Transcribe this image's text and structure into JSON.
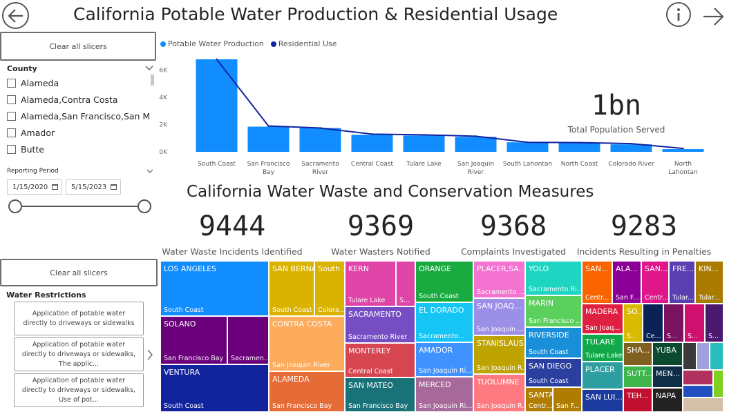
{
  "header": {
    "title": "California Potable Water Production & Residential Usage",
    "info_icon": "info-icon",
    "back_icon": "back-arrow-icon",
    "next_icon": "forward-arrow-icon"
  },
  "filters": {
    "clear_label": "Clear all slicers",
    "county": {
      "header": "County",
      "items": [
        "Alameda",
        "Alameda,Contra Costa",
        "Alameda,San Francisco,San Ma...",
        "Amador",
        "Butte"
      ]
    },
    "reporting_period": {
      "header": "Reporting Period",
      "start": "1/15/2020",
      "end": "5/15/2023"
    }
  },
  "restrictions": {
    "clear_label": "Clear all slicers",
    "header": "Water Restrictions",
    "tiles": [
      "Application of potable water directly to driveways or sidewalks",
      "Application of potable water directly to driveways or sidewalks, The applic...",
      "Application of potable water directly to driveways or sidewalks, Use of pot..."
    ]
  },
  "chart_data": {
    "type": "bar",
    "categories": [
      "South Coast",
      "San Francisco Bay",
      "Sacramento River",
      "Central Coast",
      "Tulare Lake",
      "San Joaquin River",
      "South Lahontan",
      "North Coast",
      "Colorado River",
      "North Lahontan"
    ],
    "category_lines": [
      [
        "South Coast"
      ],
      [
        "San Francisco",
        "Bay"
      ],
      [
        "Sacramento",
        "River"
      ],
      [
        "Central Coast"
      ],
      [
        "Tulare Lake"
      ],
      [
        "San Joaquin",
        "River"
      ],
      [
        "South Lahontan"
      ],
      [
        "North Coast"
      ],
      [
        "Colorado River"
      ],
      [
        "North",
        "Lahontan"
      ]
    ],
    "series": [
      {
        "name": "Potable Water Production",
        "type": "bar",
        "color": "#118DFF",
        "values": [
          6800,
          1850,
          1750,
          1250,
          1200,
          1100,
          700,
          650,
          550,
          200
        ]
      },
      {
        "name": "Residential Use",
        "type": "line",
        "color": "#12239E",
        "values": [
          6800,
          1900,
          1750,
          1300,
          1250,
          1150,
          700,
          680,
          600,
          250
        ]
      }
    ],
    "y_ticks": [
      "0K",
      "2K",
      "4K",
      "6K"
    ],
    "y_tick_values": [
      0,
      2000,
      4000,
      6000
    ],
    "ylim": [
      0,
      7200
    ],
    "legend_position": "top-left"
  },
  "population": {
    "value": "1bn",
    "label": "Total Population Served"
  },
  "conservation": {
    "title": "California Water Waste and Conservation Measures",
    "kpis": [
      {
        "value": "9444",
        "label": "Water Waste Incidents Identified"
      },
      {
        "value": "9369",
        "label": "Water Wasters Notified"
      },
      {
        "value": "9368",
        "label": "Complaints Investigated"
      },
      {
        "value": "9283",
        "label": "Incidents Resulting in Penalties"
      }
    ]
  },
  "treemap": {
    "cells": [
      {
        "name": "LOS ANGELES",
        "sub": "South Coast",
        "color": "#118DFF"
      },
      {
        "name": "SOLANO",
        "sub": "San Francisco Bay",
        "color": "#6B007B"
      },
      {
        "name": "",
        "sub": "Sacramen...",
        "color": "#6B007B"
      },
      {
        "name": "VENTURA",
        "sub": "South Coast",
        "color": "#12239E"
      },
      {
        "name": "SAN BERNARDINO",
        "sub": "South Coast",
        "color": "#D9B300"
      },
      {
        "name": "South ...",
        "sub": "Colora...",
        "color": "#D9B300"
      },
      {
        "name": "CONTRA COSTA",
        "sub": "San Joaquin River",
        "color": "#FDAB5C"
      },
      {
        "name": "ALAMEDA",
        "sub": "San Francisco Bay",
        "color": "#E66C37"
      },
      {
        "name": "KERN",
        "sub": "Tulare Lake",
        "color": "#E044A7"
      },
      {
        "name": "",
        "sub": "S...",
        "color": "#E044A7"
      },
      {
        "name": "SACRAMENTO",
        "sub": "Sacramento River",
        "color": "#744EC2"
      },
      {
        "name": "MONTEREY",
        "sub": "Central Coast",
        "color": "#D64550"
      },
      {
        "name": "SAN MATEO",
        "sub": "San Francisco Bay",
        "color": "#197278"
      },
      {
        "name": "ORANGE",
        "sub": "South Coast",
        "color": "#1AAB40"
      },
      {
        "name": "EL DORADO",
        "sub": "Sacramento...",
        "color": "#15C6F4"
      },
      {
        "name": "AMADOR",
        "sub": "San Joaquin Ri...",
        "color": "#4092FF"
      },
      {
        "name": "MERCED",
        "sub": "San Joaquin Ri...",
        "color": "#A66999"
      },
      {
        "name": "PLACER,SA...",
        "sub": "Sacramento ...",
        "color": "#F472D0"
      },
      {
        "name": "SAN JOAQ...",
        "sub": "San Joaquin ...",
        "color": "#9B8FE8"
      },
      {
        "name": "STANISLAUS",
        "sub": "San Joaquin R...",
        "color": "#BFA300"
      },
      {
        "name": "TUOLUMNE",
        "sub": "San Joaquin R...",
        "color": "#FF7A80"
      },
      {
        "name": "YOLO",
        "sub": "Sacramento Ri...",
        "color": "#1DD5C0"
      },
      {
        "name": "MARIN",
        "sub": "San Francisco ...",
        "color": "#5CD05C"
      },
      {
        "name": "RIVERSIDE",
        "sub": "South Coast",
        "color": "#1A8FD9"
      },
      {
        "name": "SAN DIEGO",
        "sub": "South Coast",
        "color": "#2B3FA0"
      },
      {
        "name": "SANTA CLARA",
        "sub": "Centr...",
        "color": "#B07C00"
      },
      {
        "name": "",
        "sub": "San F...",
        "color": "#B07C00"
      },
      {
        "name": "SAN...",
        "sub": "Centr...",
        "color": "#FA6400"
      },
      {
        "name": "ALA...",
        "sub": "San F...",
        "color": "#8A0096"
      },
      {
        "name": "SAN...",
        "sub": "Centr...",
        "color": "#E0168A"
      },
      {
        "name": "FRE...",
        "sub": "Tular...",
        "color": "#5A3FB0"
      },
      {
        "name": "KIN...",
        "sub": "Tular...",
        "color": "#A97C00"
      },
      {
        "name": "MADERA",
        "sub": "San Joaq...",
        "color": "#E02040"
      },
      {
        "name": "SO...",
        "sub": "S...",
        "color": "#D8BB00"
      },
      {
        "name": "",
        "sub": "Ce...",
        "color": "#0A2255"
      },
      {
        "name": "",
        "sub": "S...",
        "color": "#7A1260"
      },
      {
        "name": "",
        "sub": "S...",
        "color": "#D0106E"
      },
      {
        "name": "",
        "sub": "S...",
        "color": "#4B1A6E"
      },
      {
        "name": "TULARE",
        "sub": "Tulare Lake",
        "color": "#11A84A"
      },
      {
        "name": "PLACER",
        "sub": "",
        "color": "#2E9FA0"
      },
      {
        "name": "SAN LUI...",
        "sub": "",
        "color": "#1A3A9E"
      },
      {
        "name": "SHA...",
        "sub": "",
        "color": "#806020"
      },
      {
        "name": "YUBA",
        "sub": "",
        "color": "#0A4A30"
      },
      {
        "name": "SUTT...",
        "sub": "",
        "color": "#3DB54A"
      },
      {
        "name": "MEN...",
        "sub": "",
        "color": "#0E2E48"
      },
      {
        "name": "TEH...",
        "sub": "",
        "color": "#C01030"
      },
      {
        "name": "NAPA",
        "sub": "",
        "color": "#222222"
      },
      {
        "name": "",
        "sub": "",
        "color": "#3A3A3A"
      },
      {
        "name": "",
        "sub": "",
        "color": "#A0A0E0"
      },
      {
        "name": "",
        "sub": "",
        "color": "#2BBCBC"
      },
      {
        "name": "",
        "sub": "",
        "color": "#B03060"
      },
      {
        "name": "",
        "sub": "",
        "color": "#2050C0"
      },
      {
        "name": "",
        "sub": "",
        "color": "#80D020"
      },
      {
        "name": "",
        "sub": "",
        "color": "#D4C0A8"
      }
    ]
  }
}
